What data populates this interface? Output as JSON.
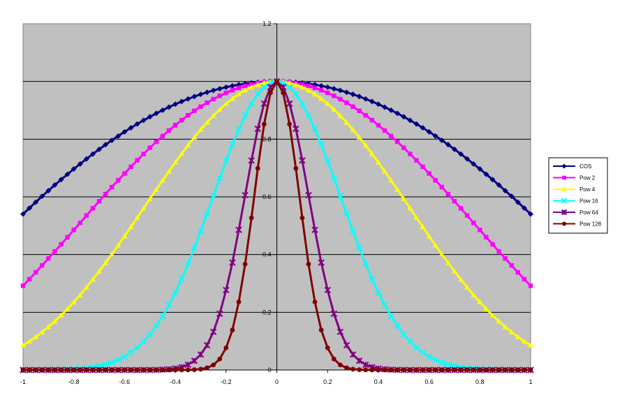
{
  "chart_data": {
    "type": "line",
    "title": "",
    "xlabel": "",
    "ylabel": "",
    "xlim": [
      -1,
      1
    ],
    "ylim": [
      0,
      1.2
    ],
    "x_ticks": [
      -1,
      -0.8,
      -0.6,
      -0.4,
      -0.2,
      0,
      0.2,
      0.4,
      0.6,
      0.8,
      1
    ],
    "x_tick_labels": [
      "-1",
      "-0.8",
      "-0.6",
      "-0.4",
      "-0.2",
      "0",
      "0.2",
      "0.4",
      "0.6",
      "0.8",
      "1"
    ],
    "y_ticks": [
      0,
      0.2,
      0.4,
      0.6,
      0.8,
      1,
      1.2
    ],
    "y_tick_labels": [
      "0",
      "0.2",
      "0.4",
      "0.6",
      "0.8",
      "1",
      "1.2"
    ],
    "grid": "horizontal",
    "plot_background": "#c0c0c0",
    "legend_position": "right",
    "x": [
      -1,
      -0.975,
      -0.95,
      -0.925,
      -0.9,
      -0.875,
      -0.85,
      -0.825,
      -0.8,
      -0.775,
      -0.75,
      -0.725,
      -0.7,
      -0.675,
      -0.65,
      -0.625,
      -0.6,
      -0.575,
      -0.55,
      -0.525,
      -0.5,
      -0.475,
      -0.45,
      -0.425,
      -0.4,
      -0.375,
      -0.35,
      -0.325,
      -0.3,
      -0.275,
      -0.25,
      -0.225,
      -0.2,
      -0.175,
      -0.15,
      -0.125,
      -0.1,
      -0.075,
      -0.05,
      -0.025,
      0,
      0.025,
      0.05,
      0.075,
      0.1,
      0.125,
      0.15,
      0.175,
      0.2,
      0.225,
      0.25,
      0.275,
      0.3,
      0.325,
      0.35,
      0.375,
      0.4,
      0.425,
      0.45,
      0.475,
      0.5,
      0.525,
      0.55,
      0.575,
      0.6,
      0.625,
      0.65,
      0.675,
      0.7,
      0.725,
      0.75,
      0.775,
      0.8,
      0.825,
      0.85,
      0.875,
      0.9,
      0.925,
      0.95,
      0.975,
      1
    ],
    "series": [
      {
        "name": "COS",
        "color": "#000080",
        "marker": "diamond",
        "values": [
          0.5403,
          0.561,
          0.5817,
          0.602,
          0.6216,
          0.641,
          0.66,
          0.6783,
          0.6967,
          0.7141,
          0.7317,
          0.7485,
          0.7648,
          0.7808,
          0.7961,
          0.8109,
          0.8253,
          0.8392,
          0.8525,
          0.8653,
          0.8776,
          0.8893,
          0.9004,
          0.911,
          0.9211,
          0.9305,
          0.9394,
          0.9477,
          0.9553,
          0.9624,
          0.9689,
          0.9748,
          0.9801,
          0.9847,
          0.9888,
          0.9922,
          0.995,
          0.9972,
          0.9988,
          0.9997,
          1.0,
          0.9997,
          0.9988,
          0.9972,
          0.995,
          0.9922,
          0.9888,
          0.9847,
          0.9801,
          0.9748,
          0.9689,
          0.9624,
          0.9553,
          0.9477,
          0.9394,
          0.9305,
          0.9211,
          0.911,
          0.9004,
          0.8893,
          0.8776,
          0.8653,
          0.8525,
          0.8392,
          0.8253,
          0.8109,
          0.7961,
          0.7808,
          0.7648,
          0.7485,
          0.7317,
          0.7141,
          0.6967,
          0.6783,
          0.66,
          0.641,
          0.6216,
          0.602,
          0.5817,
          0.561,
          0.5403
        ]
      },
      {
        "name": "Pow 2",
        "color": "#ff00ff",
        "marker": "square",
        "values": [
          0.2919,
          0.3147,
          0.3384,
          0.3624,
          0.3864,
          0.4109,
          0.4356,
          0.4601,
          0.4854,
          0.51,
          0.5354,
          0.5603,
          0.5849,
          0.6096,
          0.6338,
          0.6576,
          0.6811,
          0.7043,
          0.7268,
          0.7487,
          0.7702,
          0.7909,
          0.8107,
          0.8299,
          0.8484,
          0.8658,
          0.8825,
          0.8981,
          0.9126,
          0.9262,
          0.9388,
          0.9502,
          0.9606,
          0.9696,
          0.9777,
          0.9845,
          0.99,
          0.9944,
          0.9976,
          0.9994,
          1.0,
          0.9994,
          0.9976,
          0.9944,
          0.99,
          0.9845,
          0.9777,
          0.9696,
          0.9606,
          0.9502,
          0.9388,
          0.9262,
          0.9126,
          0.8981,
          0.8825,
          0.8658,
          0.8484,
          0.8299,
          0.8107,
          0.7909,
          0.7702,
          0.7487,
          0.7268,
          0.7043,
          0.6811,
          0.6576,
          0.6338,
          0.6096,
          0.5849,
          0.5603,
          0.5354,
          0.51,
          0.4854,
          0.4601,
          0.4356,
          0.4109,
          0.3864,
          0.3624,
          0.3384,
          0.3147,
          0.2919
        ]
      },
      {
        "name": "Pow 4",
        "color": "#ffff00",
        "marker": "triangle",
        "values": [
          0.0852,
          0.099,
          0.1145,
          0.1313,
          0.1493,
          0.1688,
          0.1897,
          0.2117,
          0.2356,
          0.2601,
          0.2866,
          0.3139,
          0.3421,
          0.3716,
          0.4017,
          0.4324,
          0.4639,
          0.496,
          0.5282,
          0.5606,
          0.5932,
          0.6255,
          0.6572,
          0.6887,
          0.7198,
          0.7496,
          0.7788,
          0.8066,
          0.8328,
          0.8578,
          0.8813,
          0.9029,
          0.9228,
          0.9401,
          0.9559,
          0.9692,
          0.9801,
          0.9888,
          0.9952,
          0.9988,
          1.0,
          0.9988,
          0.9952,
          0.9888,
          0.9801,
          0.9692,
          0.9559,
          0.9401,
          0.9228,
          0.9029,
          0.8813,
          0.8578,
          0.8328,
          0.8066,
          0.7788,
          0.7496,
          0.7198,
          0.6887,
          0.6572,
          0.6255,
          0.5932,
          0.5606,
          0.5282,
          0.496,
          0.4639,
          0.4324,
          0.4017,
          0.3716,
          0.3421,
          0.3139,
          0.2866,
          0.2601,
          0.2356,
          0.2117,
          0.1897,
          0.1688,
          0.1493,
          0.1313,
          0.1145,
          0.099,
          0.0852
        ]
      },
      {
        "name": "Pow 16",
        "color": "#00ffff",
        "marker": "x",
        "values": [
          0.0,
          0.0001,
          0.0002,
          0.0003,
          0.0005,
          0.0008,
          0.0013,
          0.002,
          0.0031,
          0.0046,
          0.0067,
          0.0097,
          0.0137,
          0.0191,
          0.026,
          0.035,
          0.0463,
          0.0605,
          0.0778,
          0.0988,
          0.1239,
          0.1531,
          0.1867,
          0.225,
          0.2685,
          0.3158,
          0.3679,
          0.4233,
          0.4812,
          0.5415,
          0.6031,
          0.6646,
          0.7254,
          0.781,
          0.8347,
          0.8822,
          0.9231,
          0.9562,
          0.9802,
          0.995,
          1.0,
          0.995,
          0.9802,
          0.9562,
          0.9231,
          0.8822,
          0.8347,
          0.781,
          0.7254,
          0.6646,
          0.6031,
          0.5415,
          0.4812,
          0.4233,
          0.3679,
          0.3158,
          0.2685,
          0.225,
          0.1867,
          0.1531,
          0.1239,
          0.0988,
          0.0778,
          0.0605,
          0.0463,
          0.035,
          0.026,
          0.0191,
          0.0137,
          0.0097,
          0.0067,
          0.0046,
          0.0031,
          0.002,
          0.0013,
          0.0008,
          0.0005,
          0.0003,
          0.0002,
          0.0001,
          0.0
        ]
      },
      {
        "name": "Pow 64",
        "color": "#800080",
        "marker": "star",
        "values": [
          0.0,
          0.0,
          0.0,
          0.0,
          0.0,
          0.0,
          0.0,
          0.0,
          0.0,
          0.0,
          0.0,
          0.0,
          0.0,
          0.0,
          0.0,
          0.0,
          0.0,
          0.0,
          0.0,
          0.0001,
          0.0002,
          0.0004,
          0.0012,
          0.0026,
          0.0052,
          0.0099,
          0.0183,
          0.0321,
          0.0536,
          0.086,
          0.1323,
          0.1951,
          0.2771,
          0.3723,
          0.4857,
          0.6058,
          0.7261,
          0.8359,
          0.9231,
          0.9802,
          1.0,
          0.9802,
          0.9231,
          0.8359,
          0.7261,
          0.6058,
          0.4857,
          0.3723,
          0.2771,
          0.1951,
          0.1323,
          0.086,
          0.0536,
          0.0321,
          0.0183,
          0.0099,
          0.0052,
          0.0026,
          0.0012,
          0.0004,
          0.0002,
          0.0001,
          0.0,
          0.0,
          0.0,
          0.0,
          0.0,
          0.0,
          0.0,
          0.0,
          0.0,
          0.0,
          0.0,
          0.0,
          0.0,
          0.0,
          0.0,
          0.0,
          0.0,
          0.0,
          0.0
        ]
      },
      {
        "name": "Pow 128",
        "color": "#800000",
        "marker": "circle",
        "values": [
          0.0,
          0.0,
          0.0,
          0.0,
          0.0,
          0.0,
          0.0,
          0.0,
          0.0,
          0.0,
          0.0,
          0.0,
          0.0,
          0.0,
          0.0,
          0.0,
          0.0,
          0.0,
          0.0,
          0.0,
          0.0,
          0.0,
          0.0,
          0.0,
          0.0,
          0.0001,
          0.0003,
          0.001,
          0.0029,
          0.0074,
          0.0175,
          0.0381,
          0.0768,
          0.1386,
          0.2359,
          0.367,
          0.5272,
          0.6987,
          0.8521,
          0.9608,
          1.0,
          0.9608,
          0.8521,
          0.6987,
          0.5272,
          0.367,
          0.2359,
          0.1386,
          0.0768,
          0.0381,
          0.0175,
          0.0074,
          0.0029,
          0.001,
          0.0003,
          0.0001,
          0.0,
          0.0,
          0.0,
          0.0,
          0.0,
          0.0,
          0.0,
          0.0,
          0.0,
          0.0,
          0.0,
          0.0,
          0.0,
          0.0,
          0.0,
          0.0,
          0.0,
          0.0,
          0.0,
          0.0,
          0.0,
          0.0,
          0.0,
          0.0,
          0.0
        ]
      }
    ]
  }
}
